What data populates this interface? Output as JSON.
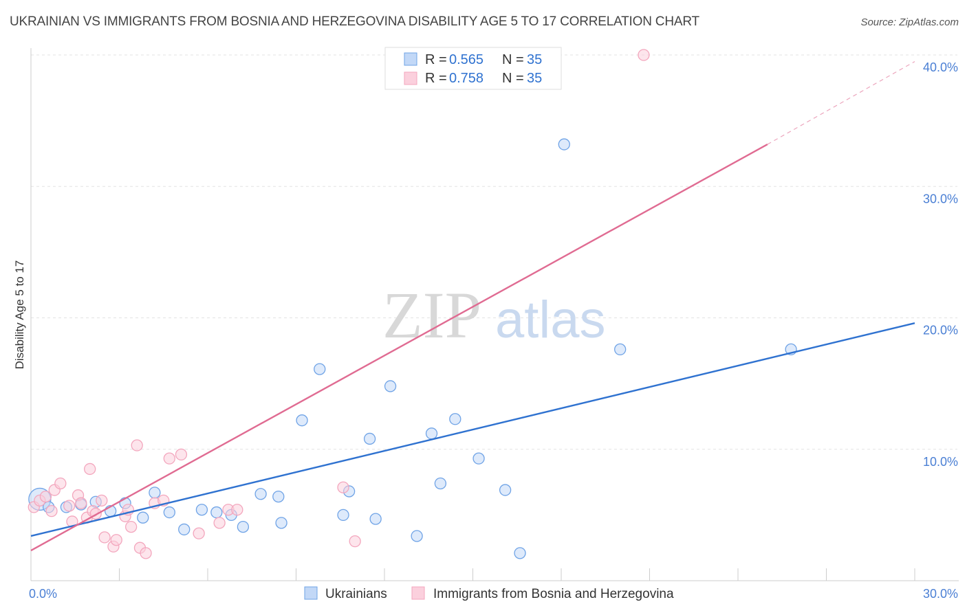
{
  "title": "UKRAINIAN VS IMMIGRANTS FROM BOSNIA AND HERZEGOVINA DISABILITY AGE 5 TO 17 CORRELATION CHART",
  "source": "Source: ZipAtlas.com",
  "watermark": {
    "zip": "ZIP",
    "atlas": "atlas"
  },
  "chart_data": {
    "type": "scatter",
    "title": "UKRAINIAN VS IMMIGRANTS FROM BOSNIA AND HERZEGOVINA DISABILITY AGE 5 TO 17 CORRELATION CHART",
    "xlabel": "",
    "ylabel": "Disability Age 5 to 17",
    "xlim": [
      0,
      30
    ],
    "ylim": [
      0,
      40
    ],
    "x_tick_labels": [
      "0.0%",
      "30.0%"
    ],
    "y_ticks": [
      10,
      20,
      30,
      40
    ],
    "y_tick_labels": [
      "10.0%",
      "20.0%",
      "30.0%",
      "40.0%"
    ],
    "grid": true,
    "legend_position": "top-center",
    "series": [
      {
        "name": "Ukrainians",
        "color": "#6fa3e6",
        "line_color": "#2f72d0",
        "r_label": "R =",
        "r_value": "0.565",
        "n_label": "N =",
        "n_value": "35",
        "trend": {
          "x": [
            0,
            30
          ],
          "y": [
            3.4,
            19.6
          ]
        },
        "points": [
          {
            "x": 0.3,
            "y": 6.2
          },
          {
            "x": 0.6,
            "y": 5.6
          },
          {
            "x": 1.2,
            "y": 5.6
          },
          {
            "x": 1.7,
            "y": 5.8
          },
          {
            "x": 2.2,
            "y": 6.0
          },
          {
            "x": 2.7,
            "y": 5.3
          },
          {
            "x": 3.2,
            "y": 5.9
          },
          {
            "x": 3.8,
            "y": 4.8
          },
          {
            "x": 4.2,
            "y": 6.7
          },
          {
            "x": 4.7,
            "y": 5.2
          },
          {
            "x": 5.2,
            "y": 3.9
          },
          {
            "x": 5.8,
            "y": 5.4
          },
          {
            "x": 6.3,
            "y": 5.2
          },
          {
            "x": 6.8,
            "y": 5.0
          },
          {
            "x": 7.2,
            "y": 4.1
          },
          {
            "x": 7.8,
            "y": 6.6
          },
          {
            "x": 8.4,
            "y": 6.4
          },
          {
            "x": 8.5,
            "y": 4.4
          },
          {
            "x": 9.2,
            "y": 12.2
          },
          {
            "x": 9.8,
            "y": 16.1
          },
          {
            "x": 10.6,
            "y": 5.0
          },
          {
            "x": 10.8,
            "y": 6.8
          },
          {
            "x": 11.5,
            "y": 10.8
          },
          {
            "x": 11.7,
            "y": 4.7
          },
          {
            "x": 12.2,
            "y": 14.8
          },
          {
            "x": 13.1,
            "y": 3.4
          },
          {
            "x": 13.6,
            "y": 11.2
          },
          {
            "x": 13.9,
            "y": 7.4
          },
          {
            "x": 14.4,
            "y": 12.3
          },
          {
            "x": 15.2,
            "y": 9.3
          },
          {
            "x": 16.1,
            "y": 6.9
          },
          {
            "x": 16.6,
            "y": 2.1
          },
          {
            "x": 18.1,
            "y": 33.2
          },
          {
            "x": 20.0,
            "y": 17.6
          },
          {
            "x": 25.8,
            "y": 17.6
          }
        ]
      },
      {
        "name": "Immigrants from Bosnia and Herzegovina",
        "color": "#f3a6bd",
        "line_color": "#e06b92",
        "r_label": "R =",
        "r_value": "0.758",
        "n_label": "N =",
        "n_value": "35",
        "trend": {
          "x": [
            0,
            25
          ],
          "y": [
            2.3,
            33.2
          ]
        },
        "trend_dashed": {
          "x": [
            25,
            30
          ],
          "y": [
            33.2,
            39.5
          ]
        },
        "points": [
          {
            "x": 0.1,
            "y": 5.6
          },
          {
            "x": 0.3,
            "y": 6.1
          },
          {
            "x": 0.5,
            "y": 6.4
          },
          {
            "x": 0.7,
            "y": 5.3
          },
          {
            "x": 0.8,
            "y": 6.9
          },
          {
            "x": 1.0,
            "y": 7.4
          },
          {
            "x": 1.3,
            "y": 5.7
          },
          {
            "x": 1.4,
            "y": 4.5
          },
          {
            "x": 1.6,
            "y": 6.5
          },
          {
            "x": 1.7,
            "y": 5.9
          },
          {
            "x": 1.9,
            "y": 4.8
          },
          {
            "x": 2.0,
            "y": 8.5
          },
          {
            "x": 2.1,
            "y": 5.3
          },
          {
            "x": 2.2,
            "y": 5.1
          },
          {
            "x": 2.4,
            "y": 6.1
          },
          {
            "x": 2.5,
            "y": 3.3
          },
          {
            "x": 2.8,
            "y": 2.6
          },
          {
            "x": 2.9,
            "y": 3.1
          },
          {
            "x": 3.2,
            "y": 4.9
          },
          {
            "x": 3.3,
            "y": 5.4
          },
          {
            "x": 3.4,
            "y": 4.1
          },
          {
            "x": 3.6,
            "y": 10.3
          },
          {
            "x": 3.7,
            "y": 2.5
          },
          {
            "x": 3.9,
            "y": 2.1
          },
          {
            "x": 4.2,
            "y": 5.9
          },
          {
            "x": 4.5,
            "y": 6.1
          },
          {
            "x": 4.7,
            "y": 9.3
          },
          {
            "x": 5.1,
            "y": 9.6
          },
          {
            "x": 5.7,
            "y": 3.6
          },
          {
            "x": 6.4,
            "y": 4.4
          },
          {
            "x": 6.7,
            "y": 5.4
          },
          {
            "x": 7.0,
            "y": 5.4
          },
          {
            "x": 10.6,
            "y": 7.1
          },
          {
            "x": 11.0,
            "y": 3.0
          },
          {
            "x": 20.8,
            "y": 40.0
          }
        ]
      }
    ]
  }
}
